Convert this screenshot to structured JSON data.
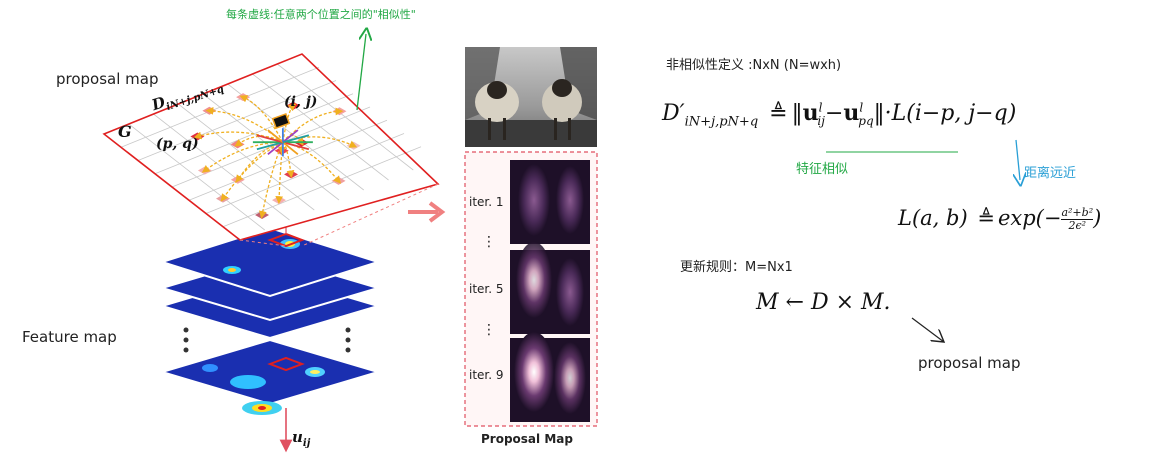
{
  "annotations": {
    "top_note": "每条虚线:任意两个位置之间的\"相似性\"",
    "proposal_map_label": "proposal map",
    "feature_map_label": "Feature map",
    "proposal_map_title": "Proposal Map",
    "proposal_map_bottom": "proposal map",
    "feature_similarity": "特征相似",
    "distance_near": "距离远近",
    "dissimilarity_def": "非相似性定义 :NxN (N=wxh)",
    "update_rule": "更新规则：M=Nx1"
  },
  "grid_labels": {
    "G": "G",
    "ij": "(i, j)",
    "pq": "(p, q)",
    "D": "D",
    "D_sub": "iN+j,pN+q",
    "u": "u",
    "u_sub": "ij"
  },
  "iterations": [
    "iter. 1",
    "iter. 5",
    "iter. 9"
  ],
  "ellipsis": "⋮",
  "formula1": {
    "lhs": "D′",
    "lhs_sub": "iN+j,pN+q",
    "def": "≜",
    "norm_open": "‖",
    "u1": "u",
    "u1_sup": "l",
    "u1_sub": "ij",
    "minus": "−",
    "u2": "u",
    "u2_sup": "l",
    "u2_sub": "pq",
    "norm_close": "‖",
    "rest": "·L(i−p, j−q)"
  },
  "formula2": {
    "lhs": "L(a, b)",
    "def": "≜",
    "exp": "exp(−",
    "num": "a²+b²",
    "den": "2ϵ²",
    "close": ")"
  },
  "formula3": {
    "text": "M ← D × M."
  },
  "colors": {
    "grid_red": "#e02020",
    "arrow_salmon": "#f08080",
    "green": "#22a845",
    "blue": "#2a9fd6",
    "feature_blue": "#1a2fb0"
  }
}
